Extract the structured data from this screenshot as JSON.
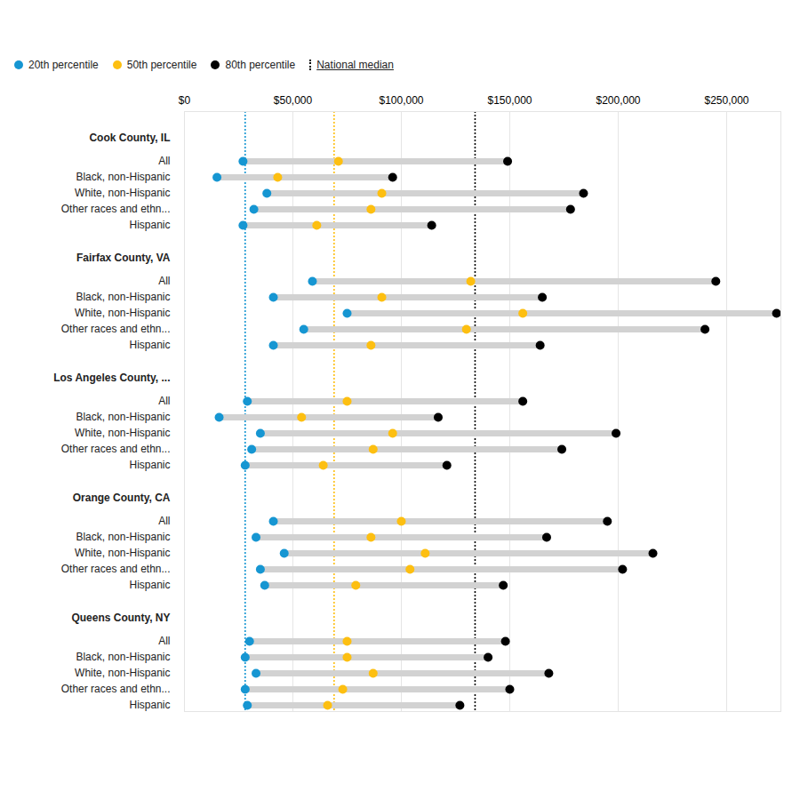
{
  "chart_data": {
    "type": "dumbbell",
    "orientation": "horizontal",
    "legend": "top-left",
    "grid": true,
    "xlim": [
      0,
      275000
    ],
    "xticks": [
      {
        "value": 0,
        "label": "$0"
      },
      {
        "value": 50000,
        "label": "$50,000"
      },
      {
        "value": 100000,
        "label": "$100,000"
      },
      {
        "value": 150000,
        "label": "$150,000"
      },
      {
        "value": 200000,
        "label": "$200,000"
      },
      {
        "value": 250000,
        "label": "$250,000"
      }
    ],
    "reference_label": "National median",
    "series": [
      {
        "name": "20th percentile",
        "color": "#1696d2",
        "national": 28000
      },
      {
        "name": "50th percentile",
        "color": "#fdbf11",
        "national": 69000
      },
      {
        "name": "80th percentile",
        "color": "#000000",
        "national": 134000
      }
    ],
    "groups": [
      {
        "name": "Cook County, IL",
        "categories": [
          "All",
          "Black, non-Hispanic",
          "White, non-Hispanic",
          "Other races and ethn...",
          "Hispanic"
        ],
        "values": [
          [
            27000,
            15000,
            38000,
            32000,
            27000
          ],
          [
            71000,
            43000,
            91000,
            86000,
            61000
          ],
          [
            149000,
            96000,
            184000,
            178000,
            114000
          ]
        ]
      },
      {
        "name": "Fairfax County, VA",
        "categories": [
          "All",
          "Black, non-Hispanic",
          "White, non-Hispanic",
          "Other races and ethn...",
          "Hispanic"
        ],
        "values": [
          [
            59000,
            41000,
            75000,
            55000,
            41000
          ],
          [
            132000,
            91000,
            156000,
            130000,
            86000
          ],
          [
            245000,
            165000,
            273000,
            240000,
            164000
          ]
        ]
      },
      {
        "name": "Los Angeles County, ...",
        "categories": [
          "All",
          "Black, non-Hispanic",
          "White, non-Hispanic",
          "Other races and ethn...",
          "Hispanic"
        ],
        "values": [
          [
            29000,
            16000,
            35000,
            31000,
            28000
          ],
          [
            75000,
            54000,
            96000,
            87000,
            64000
          ],
          [
            156000,
            117000,
            199000,
            174000,
            121000
          ]
        ]
      },
      {
        "name": "Orange County, CA",
        "categories": [
          "All",
          "Black, non-Hispanic",
          "White, non-Hispanic",
          "Other races and ethn...",
          "Hispanic"
        ],
        "values": [
          [
            41000,
            33000,
            46000,
            35000,
            37000
          ],
          [
            100000,
            86000,
            111000,
            104000,
            79000
          ],
          [
            195000,
            167000,
            216000,
            202000,
            147000
          ]
        ]
      },
      {
        "name": "Queens County, NY",
        "categories": [
          "All",
          "Black, non-Hispanic",
          "White, non-Hispanic",
          "Other races and ethn...",
          "Hispanic"
        ],
        "values": [
          [
            30000,
            28000,
            33000,
            28000,
            29000
          ],
          [
            75000,
            75000,
            87000,
            73000,
            66000
          ],
          [
            148000,
            140000,
            168000,
            150000,
            127000
          ]
        ]
      }
    ]
  }
}
